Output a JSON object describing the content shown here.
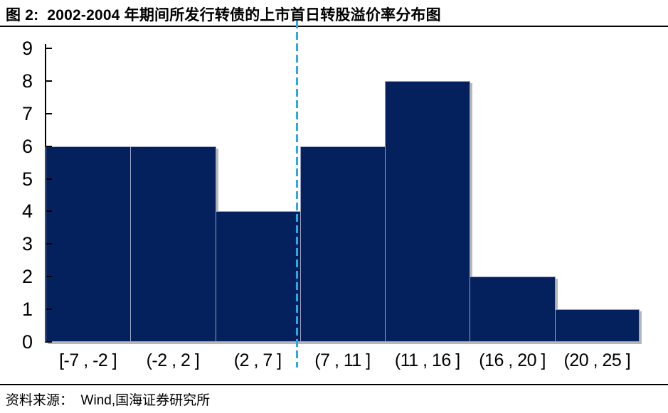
{
  "header": {
    "figure_title": "图 2:  2002-2004 年期间所发行转债的上市首日转股溢价率分布图"
  },
  "footer": {
    "source": "资料来源：  Wind,国海证券研究所"
  },
  "chart_data": {
    "type": "bar",
    "title": "2002-2004 年期间所发行转债的上市首日转股溢价率分布图",
    "categories": [
      "[-7 , -2 ]",
      "(-2 , 2 ]",
      "(2 , 7 ]",
      "(7 , 11 ]",
      "(11 , 16 ]",
      "(16 , 20 ]",
      "(20 , 25 ]"
    ],
    "values": [
      6,
      6,
      4,
      6,
      8,
      2,
      1
    ],
    "xlabel": "",
    "ylabel": "",
    "ylim": [
      0,
      9
    ],
    "yticks": [
      0,
      1,
      2,
      3,
      4,
      5,
      6,
      7,
      8,
      9
    ],
    "grid": false,
    "legend": false,
    "bar_color": "#04215e",
    "bar_border_color": "#97a1c2",
    "reference_line": {
      "orientation": "vertical",
      "position": "between (2 , 7 ] and (7 , 11 ]",
      "style": "dashed",
      "color": "#29abe2"
    }
  }
}
